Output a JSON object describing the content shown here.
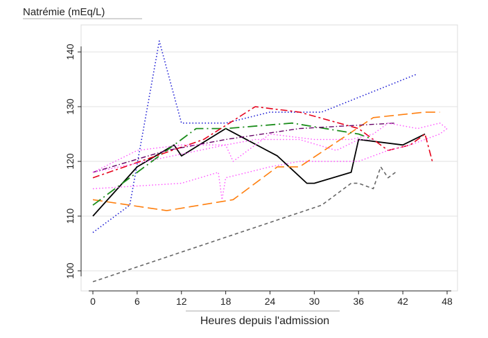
{
  "chart_data": {
    "type": "line",
    "title": "Natrémie (mEq/L)",
    "xlabel": "Heures depuis l'admission",
    "ylabel": "",
    "xlim": [
      -1,
      50
    ],
    "ylim": [
      97,
      146
    ],
    "x_ticks": [
      0,
      6,
      12,
      18,
      24,
      30,
      36,
      42,
      48
    ],
    "y_ticks": [
      100,
      110,
      120,
      130,
      140
    ],
    "grid": "horizontal",
    "legend": "none",
    "series": [
      {
        "color": "#1a1ad4",
        "dash": "dotted",
        "width": 1.6,
        "points": [
          [
            0,
            107
          ],
          [
            5,
            112
          ],
          [
            9,
            142
          ],
          [
            12,
            127
          ],
          [
            18,
            127
          ],
          [
            24,
            129
          ],
          [
            31,
            129
          ],
          [
            44,
            136
          ]
        ]
      },
      {
        "color": "#666666",
        "dash": "dashed",
        "width": 1.6,
        "points": [
          [
            0,
            98
          ],
          [
            31,
            112
          ],
          [
            35,
            116
          ],
          [
            36,
            116
          ],
          [
            38,
            115
          ],
          [
            39,
            119
          ],
          [
            40,
            117
          ],
          [
            41,
            118
          ]
        ]
      },
      {
        "color": "#000000",
        "dash": "solid",
        "width": 1.8,
        "points": [
          [
            0,
            110
          ],
          [
            6,
            119
          ],
          [
            11,
            123
          ],
          [
            12,
            121
          ],
          [
            18,
            126
          ],
          [
            25,
            121
          ],
          [
            29,
            116
          ],
          [
            30,
            116
          ],
          [
            35,
            118
          ],
          [
            36,
            124
          ],
          [
            42,
            123
          ],
          [
            45,
            125
          ]
        ]
      },
      {
        "color": "#ff7f0e",
        "dash": "longdash",
        "width": 1.6,
        "points": [
          [
            0,
            113
          ],
          [
            10,
            111
          ],
          [
            19,
            113
          ],
          [
            25,
            119
          ],
          [
            28,
            119
          ],
          [
            38,
            128
          ],
          [
            45,
            129
          ],
          [
            47,
            129
          ]
        ]
      },
      {
        "color": "#1a8c1a",
        "dash": "dashdot",
        "width": 1.8,
        "points": [
          [
            0,
            112
          ],
          [
            12,
            124
          ],
          [
            14,
            126
          ],
          [
            18,
            126
          ],
          [
            27,
            127
          ],
          [
            36,
            125
          ],
          [
            38,
            124
          ]
        ]
      },
      {
        "color": "#e6001a",
        "dash": "dashdot2",
        "width": 1.6,
        "points": [
          [
            0,
            117
          ],
          [
            15,
            124
          ],
          [
            22,
            130
          ],
          [
            28,
            129
          ],
          [
            36,
            126
          ],
          [
            40,
            122
          ],
          [
            43,
            123
          ],
          [
            45,
            125
          ],
          [
            46,
            120
          ]
        ]
      },
      {
        "color": "#660066",
        "dash": "dashdot3",
        "width": 1.4,
        "points": [
          [
            0,
            118
          ],
          [
            10,
            122
          ],
          [
            18,
            124
          ],
          [
            28,
            126
          ],
          [
            41,
            127
          ]
        ]
      },
      {
        "color": "#ff4dff",
        "dash": "dotted",
        "width": 1.4,
        "points": [
          [
            0,
            118
          ],
          [
            6,
            122
          ],
          [
            12,
            123
          ],
          [
            18,
            123
          ],
          [
            19,
            120
          ],
          [
            24,
            125
          ],
          [
            30,
            124
          ],
          [
            35,
            124
          ],
          [
            38,
            125
          ],
          [
            40,
            127
          ],
          [
            44,
            126
          ],
          [
            47,
            127
          ],
          [
            48,
            126
          ]
        ]
      },
      {
        "color": "#ff4dff",
        "dash": "dotted",
        "width": 1.4,
        "points": [
          [
            0,
            115
          ],
          [
            12,
            116
          ],
          [
            17,
            118
          ],
          [
            17.5,
            113
          ],
          [
            18,
            117
          ],
          [
            24,
            119
          ],
          [
            28,
            120
          ],
          [
            32,
            120
          ],
          [
            36,
            120
          ],
          [
            40,
            122
          ],
          [
            43,
            123
          ],
          [
            47,
            125
          ],
          [
            48,
            126
          ]
        ]
      },
      {
        "color": "#ff4dff",
        "dash": "dotted",
        "width": 1.4,
        "points": [
          [
            0,
            118
          ],
          [
            18,
            123
          ],
          [
            22,
            124
          ],
          [
            28,
            124
          ],
          [
            33,
            122
          ],
          [
            36,
            124
          ],
          [
            38,
            124
          ]
        ]
      }
    ]
  }
}
